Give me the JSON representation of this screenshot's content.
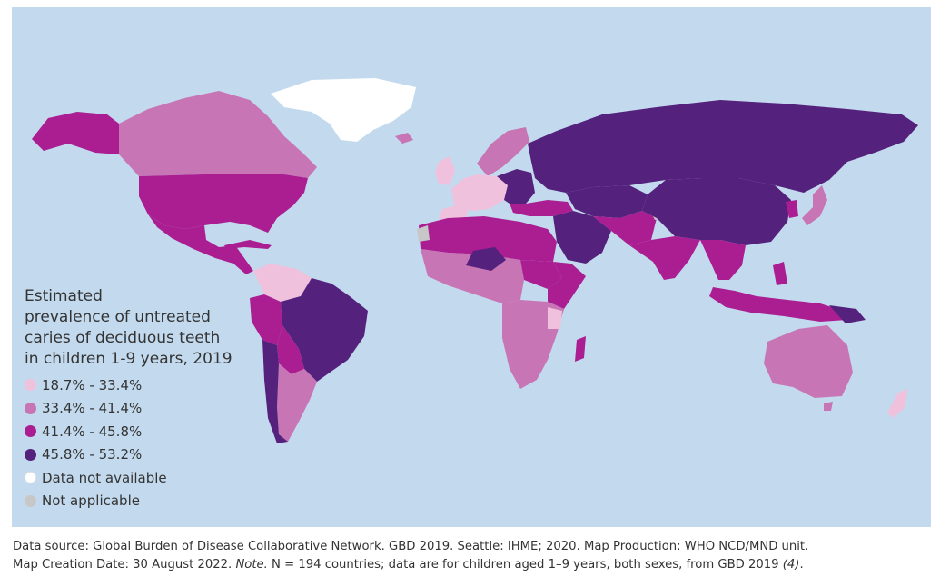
{
  "legend": {
    "title_lines": [
      "Estimated",
      "prevalence of untreated",
      "caries of  deciduous teeth",
      "in children 1-9 years, 2019"
    ],
    "items": [
      {
        "label": "18.7% - 33.4%",
        "color": "#efc1dd"
      },
      {
        "label": "33.4% - 41.4%",
        "color": "#c875b5"
      },
      {
        "label": "41.4% - 45.8%",
        "color": "#aa1e92"
      },
      {
        "label": "45.8% - 53.2%",
        "color": "#54217c"
      },
      {
        "label": "Data not available",
        "color": "#ffffff"
      },
      {
        "label": "Not applicable",
        "color": "#c7c7c7"
      }
    ]
  },
  "map": {
    "ocean_color": "#c3daee",
    "categories": {
      "low": "#efc1dd",
      "midlow": "#c875b5",
      "midhigh": "#aa1e92",
      "high": "#54217c",
      "na": "#ffffff",
      "notapplicable": "#c7c7c7"
    }
  },
  "caption": {
    "line1": "Data source: Global Burden of Disease Collaborative Network. GBD 2019. Seattle: IHME; 2020.  Map Production: WHO NCD/MND unit.",
    "line2_prefix": "Map Creation Date: 30 August 2022.  ",
    "note_label": "Note.",
    "line2_body": " N = 194 countries; data are for children aged 1–9 years, both sexes, from GBD 2019 ",
    "ref": "(4)",
    "line2_end": "."
  }
}
